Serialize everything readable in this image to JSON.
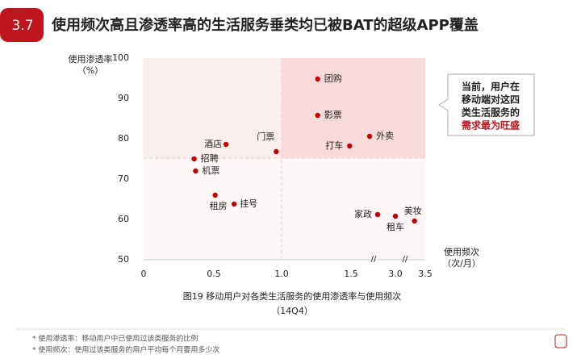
{
  "header": {
    "badge": "3.7",
    "title": "使用频次高且渗透率高的生活服务垂类均已被BAT的超级APP覆盖"
  },
  "chart_data": {
    "type": "scatter",
    "y_label_lines": [
      "使用渗透率",
      "（%）"
    ],
    "x_label_lines": [
      "使用频次",
      "（次/月）"
    ],
    "axis_break": "//",
    "labels": [
      "团购",
      "影票",
      "门票",
      "外卖",
      "打车",
      "酒店",
      "招聘",
      "机票",
      "租房",
      "挂号",
      "家政",
      "租车",
      "美妆"
    ],
    "x": [
      1.26,
      1.26,
      0.96,
      2.13,
      1.49,
      0.59,
      0.36,
      0.37,
      0.51,
      0.65,
      2.4,
      3.0,
      3.32
    ],
    "values": [
      94.8,
      85.8,
      76.8,
      80.6,
      78.2,
      78.6,
      75,
      72,
      66,
      63.8,
      61.2,
      60.8,
      59.6
    ],
    "color": "#c00000",
    "xlim": [
      0,
      3.5
    ],
    "ylim": [
      50,
      100
    ],
    "xticks": [
      0,
      0.5,
      {
        "value": 1,
        "label": "1.0"
      },
      1.5,
      {
        "value": 3,
        "label": "3.0"
      },
      3.5
    ],
    "yticks": [
      50,
      60,
      70,
      80,
      90,
      100
    ],
    "caption": "图19 移动用户对各类生活服务的使用渗透率与使用频次",
    "caption_period": "（14Q4）"
  },
  "callout": [
    "当前，用户在",
    "移动端对这四",
    "类生活服务的",
    "需求最为旺盛"
  ],
  "footnotes": [
    "* 使用渗透率：移动用户中已使用过该类服务的比例",
    "* 使用频次：使用过该类服务的用户平均每个月要用多少次"
  ]
}
